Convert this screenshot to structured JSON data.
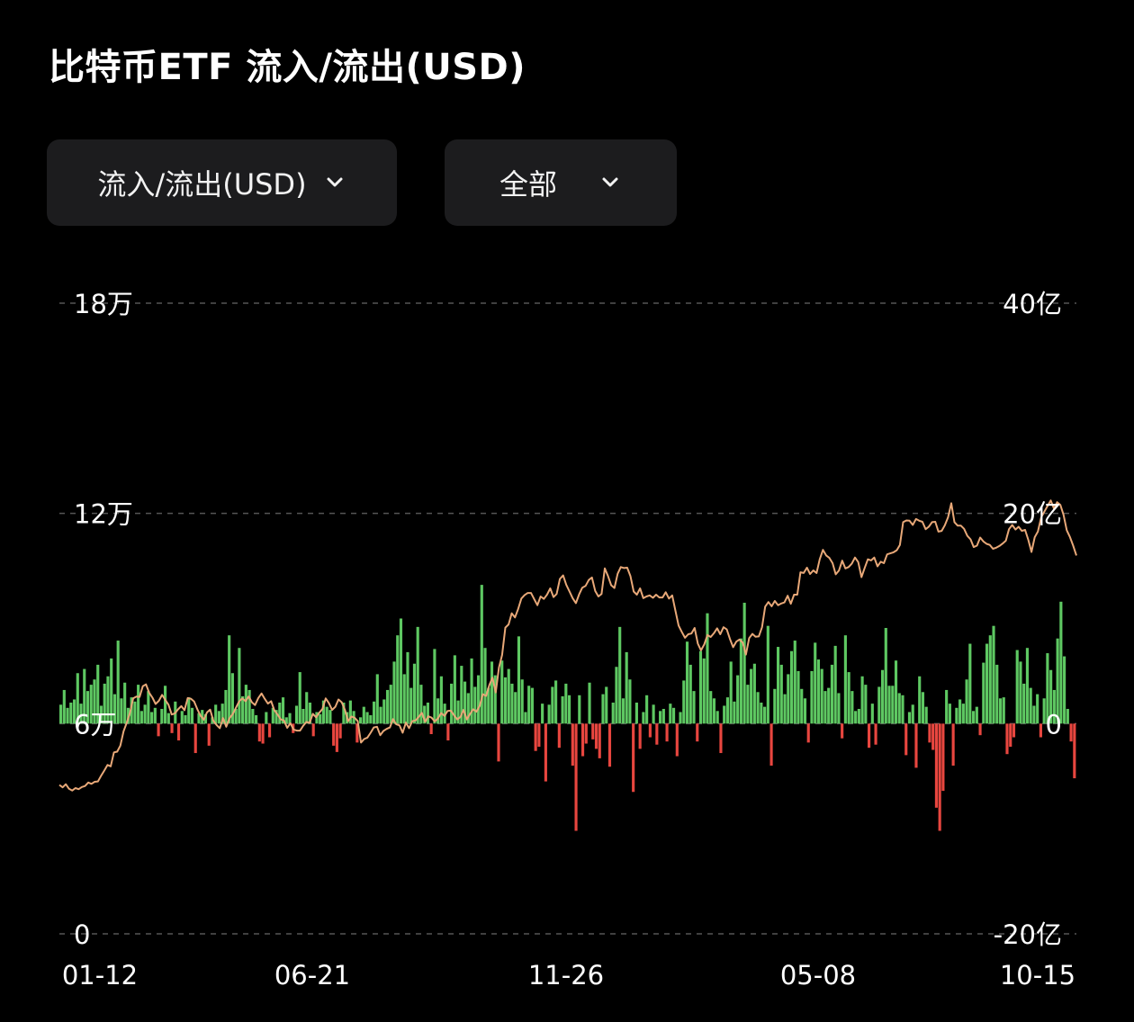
{
  "title": "比特币ETF 流入/流出(USD)",
  "controls": {
    "metric_label": "流入/流出(USD)",
    "range_label": "全部"
  },
  "colors": {
    "inflow": "#5ec862",
    "outflow": "#e8463f",
    "price_line": "#e8a878",
    "grid": "#555555"
  },
  "chart_data": {
    "type": "bar",
    "left_axis": {
      "ticks": [
        "18万",
        "12万",
        "6万",
        "0"
      ],
      "range": [
        0,
        180000
      ]
    },
    "right_axis": {
      "ticks": [
        "40亿",
        "20亿",
        "0",
        "-20亿"
      ],
      "range": [
        -2000000000,
        4000000000
      ]
    },
    "x_tick_labels": [
      "01-12",
      "06-21",
      "11-26",
      "05-08",
      "10-15"
    ],
    "grid": true,
    "series": [
      {
        "name": "",
        "axis": "right",
        "kind": "bar",
        "values_description_omitted": false,
        "values": [
          180000000,
          320000000,
          150000000,
          200000000,
          230000000,
          480000000,
          190000000,
          520000000,
          310000000,
          370000000,
          420000000,
          560000000,
          170000000,
          380000000,
          450000000,
          620000000,
          280000000,
          790000000,
          240000000,
          390000000,
          150000000,
          250000000,
          210000000,
          370000000,
          120000000,
          180000000,
          310000000,
          110000000,
          150000000,
          -120000000,
          140000000,
          360000000,
          100000000,
          -90000000,
          210000000,
          -160000000,
          120000000,
          80000000,
          250000000,
          150000000,
          -280000000,
          100000000,
          130000000,
          90000000,
          -210000000,
          60000000,
          180000000,
          120000000,
          190000000,
          320000000,
          840000000,
          480000000,
          140000000,
          720000000,
          260000000,
          370000000,
          320000000,
          140000000,
          80000000,
          -170000000,
          -190000000,
          110000000,
          -130000000,
          150000000,
          130000000,
          200000000,
          250000000,
          60000000,
          100000000,
          -90000000,
          170000000,
          490000000,
          140000000,
          300000000,
          200000000,
          -120000000,
          110000000,
          90000000,
          220000000,
          160000000,
          130000000,
          -210000000,
          -270000000,
          -140000000,
          200000000,
          110000000,
          220000000,
          120000000,
          -180000000,
          60000000,
          160000000,
          110000000,
          80000000,
          210000000,
          470000000,
          160000000,
          230000000,
          320000000,
          370000000,
          590000000,
          840000000,
          1000000000,
          470000000,
          680000000,
          340000000,
          570000000,
          920000000,
          370000000,
          170000000,
          200000000,
          -100000000,
          710000000,
          240000000,
          450000000,
          190000000,
          -160000000,
          380000000,
          650000000,
          220000000,
          550000000,
          400000000,
          290000000,
          620000000,
          350000000,
          460000000,
          1320000000,
          720000000,
          340000000,
          590000000,
          460000000,
          -360000000,
          600000000,
          440000000,
          520000000,
          380000000,
          300000000,
          830000000,
          420000000,
          110000000,
          360000000,
          340000000,
          -260000000,
          -220000000,
          190000000,
          -550000000,
          180000000,
          350000000,
          410000000,
          -230000000,
          260000000,
          380000000,
          270000000,
          -400000000,
          -1020000000,
          270000000,
          -310000000,
          -190000000,
          390000000,
          -150000000,
          -240000000,
          -330000000,
          280000000,
          350000000,
          -410000000,
          200000000,
          540000000,
          920000000,
          240000000,
          680000000,
          420000000,
          -650000000,
          200000000,
          -240000000,
          110000000,
          270000000,
          -130000000,
          180000000,
          -200000000,
          120000000,
          140000000,
          -170000000,
          190000000,
          150000000,
          -310000000,
          110000000,
          410000000,
          780000000,
          560000000,
          310000000,
          -170000000,
          690000000,
          620000000,
          1050000000,
          310000000,
          240000000,
          120000000,
          -280000000,
          170000000,
          250000000,
          590000000,
          210000000,
          460000000,
          810000000,
          1150000000,
          370000000,
          520000000,
          570000000,
          300000000,
          200000000,
          160000000,
          930000000,
          -400000000,
          330000000,
          730000000,
          560000000,
          280000000,
          470000000,
          690000000,
          790000000,
          500000000,
          330000000,
          240000000,
          -180000000,
          500000000,
          770000000,
          610000000,
          520000000,
          310000000,
          340000000,
          560000000,
          740000000,
          290000000,
          -140000000,
          840000000,
          490000000,
          310000000,
          120000000,
          140000000,
          450000000,
          370000000,
          -230000000,
          190000000,
          -200000000,
          350000000,
          510000000,
          910000000,
          360000000,
          360000000,
          600000000,
          290000000,
          270000000,
          -300000000,
          110000000,
          180000000,
          -420000000,
          450000000,
          300000000,
          160000000,
          -180000000,
          -250000000,
          -800000000,
          -1020000000,
          -640000000,
          320000000,
          190000000,
          -400000000,
          150000000,
          230000000,
          190000000,
          420000000,
          760000000,
          120000000,
          160000000,
          -110000000,
          580000000,
          760000000,
          840000000,
          930000000,
          560000000,
          240000000,
          250000000,
          -290000000,
          -220000000,
          -130000000,
          700000000,
          590000000,
          380000000,
          720000000,
          340000000,
          170000000,
          280000000,
          -130000000,
          240000000,
          670000000,
          510000000,
          320000000,
          810000000,
          1160000000,
          640000000,
          140000000,
          -170000000,
          -520000000
        ]
      },
      {
        "name": "",
        "axis": "left",
        "kind": "line",
        "values": [
          42500,
          41800,
          42700,
          41400,
          40900,
          41600,
          41300,
          41900,
          42200,
          43200,
          42800,
          43400,
          43500,
          45100,
          46600,
          48200,
          47800,
          51800,
          52000,
          53700,
          57800,
          60300,
          63100,
          67200,
          67700,
          67600,
          70700,
          71200,
          68800,
          67400,
          65600,
          66500,
          68200,
          66800,
          65400,
          62600,
          62900,
          64100,
          65000,
          63800,
          67300,
          67100,
          66300,
          64100,
          62300,
          61100,
          63200,
          64000,
          60800,
          59600,
          58700,
          61600,
          59100,
          61500,
          62700,
          64500,
          66300,
          67200,
          66400,
          67800,
          66100,
          65300,
          67300,
          68600,
          67100,
          65700,
          66400,
          63800,
          62600,
          61200,
          60900,
          58800,
          60100,
          58300,
          58000,
          58000,
          59400,
          60500,
          60200,
          62800,
          61800,
          63100,
          64200,
          67200,
          65900,
          63900,
          64800,
          66900,
          66100,
          63900,
          60700,
          62000,
          61700,
          60700,
          54600,
          55600,
          56000,
          57400,
          58900,
          59100,
          56700,
          57900,
          58500,
          58900,
          61300,
          59800,
          59500,
          57400,
          60300,
          58700,
          60700,
          60900,
          61900,
          63100,
          60500,
          62100,
          61700,
          60600,
          61500,
          63000,
          62200,
          63600,
          63700,
          62400,
          61200,
          61900,
          63900,
          61200,
          62800,
          64100,
          63400,
          65100,
          68400,
          67900,
          71000,
          73100,
          68900,
          76000,
          79600,
          87400,
          88300,
          91500,
          90300,
          92700,
          95700,
          96700,
          97300,
          97300,
          95500,
          93800,
          96300,
          95600,
          96800,
          98600,
          96100,
          97000,
          101300,
          102300,
          99600,
          97700,
          95800,
          94400,
          96900,
          98800,
          99300,
          101000,
          101700,
          97900,
          96300,
          97000,
          104300,
          102100,
          99500,
          98700,
          102800,
          104700,
          104400,
          104500,
          102100,
          97700,
          96800,
          98600,
          95800,
          96300,
          96600,
          95900,
          96800,
          96000,
          96000,
          97500,
          95700,
          96600,
          92300,
          88000,
          86200,
          84500,
          85500,
          85700,
          87300,
          82800,
          80900,
          82600,
          85300,
          84700,
          85800,
          87200,
          85500,
          87500,
          86900,
          84200,
          81800,
          83400,
          84000,
          83100,
          79700,
          84400,
          85600,
          84800,
          84900,
          87500,
          93400,
          94700,
          93500,
          95000,
          93800,
          94300,
          94600,
          96500,
          94200,
          96800,
          96800,
          103200,
          103000,
          104500,
          102700,
          103700,
          103000,
          106900,
          109600,
          108000,
          107300,
          105800,
          102600,
          103700,
          106500,
          104300,
          104700,
          105700,
          107400,
          106100,
          101800,
          104400,
          106900,
          106600,
          107400,
          104900,
          106200,
          105800,
          108300,
          108600,
          108900,
          109500,
          111000,
          117500,
          118000,
          117900,
          116700,
          118400,
          117900,
          117600,
          115500,
          116200,
          117500,
          117600,
          114800,
          115000,
          116600,
          118900,
          122900,
          117500,
          116500,
          116500,
          115600,
          113600,
          112600,
          110400,
          110800,
          113100,
          112000,
          111300,
          111000,
          109900,
          110200,
          110700,
          111400,
          112200,
          115500,
          116700,
          115400,
          116200,
          115000,
          115300,
          112500,
          109000,
          113200,
          114800,
          118800,
          120500,
          122100,
          123700,
          121400,
          123200,
          122400,
          119600,
          115200,
          113200,
          110800,
          108000
        ]
      }
    ]
  }
}
